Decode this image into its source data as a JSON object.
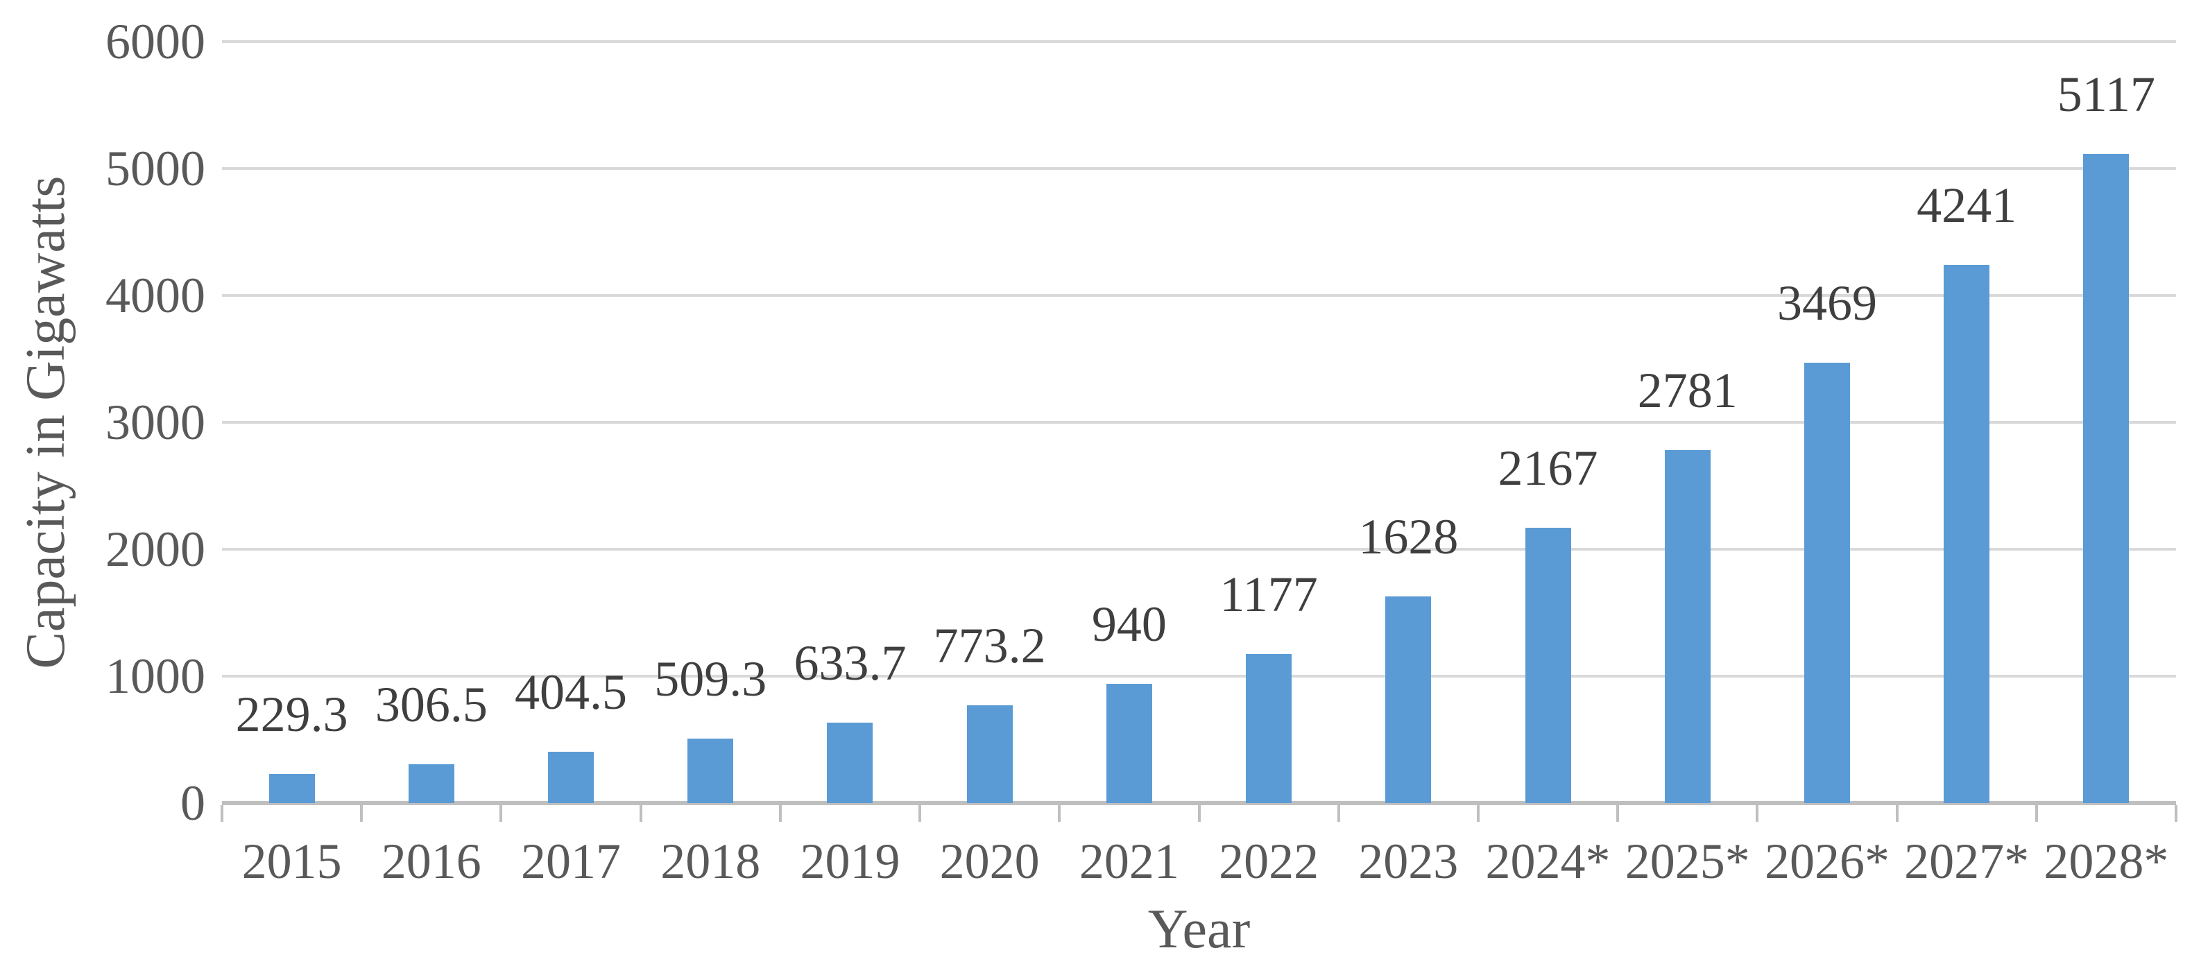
{
  "chart_data": {
    "type": "bar",
    "title": "",
    "xlabel": "Year",
    "ylabel": "Capacity in Gigawatts",
    "categories": [
      "2015",
      "2016",
      "2017",
      "2018",
      "2019",
      "2020",
      "2021",
      "2022",
      "2023",
      "2024*",
      "2025*",
      "2026*",
      "2027*",
      "2028*"
    ],
    "values": [
      229.3,
      306.5,
      404.5,
      509.3,
      633.7,
      773.2,
      940,
      1177,
      1628,
      2167,
      2781,
      3469,
      4241,
      5117
    ],
    "data_labels": [
      "229.3",
      "306.5",
      "404.5",
      "509.3",
      "633.7",
      "773.2",
      "940",
      "1177",
      "1628",
      "2167",
      "2781",
      "3469",
      "4241",
      "5117"
    ],
    "ylim": [
      0,
      6000
    ],
    "yticks": [
      0,
      1000,
      2000,
      3000,
      4000,
      5000,
      6000
    ],
    "grid": true,
    "legend_position": "none",
    "colors": {
      "bar": "#5B9BD5",
      "gridline": "#D9D9D9",
      "axis_line": "#BFBFBF",
      "data_label_text": "#3F3F3F",
      "axis_text": "#595959"
    }
  }
}
